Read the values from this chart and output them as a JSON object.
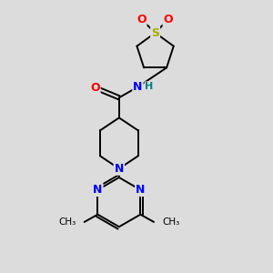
{
  "background_color": "#dcdcdc",
  "atom_colors": {
    "O": "#ff0000",
    "N": "#0000ff",
    "S": "#aaaa00",
    "C": "#000000",
    "H": "#008080"
  },
  "bond_color": "#000000",
  "lw": 1.4
}
